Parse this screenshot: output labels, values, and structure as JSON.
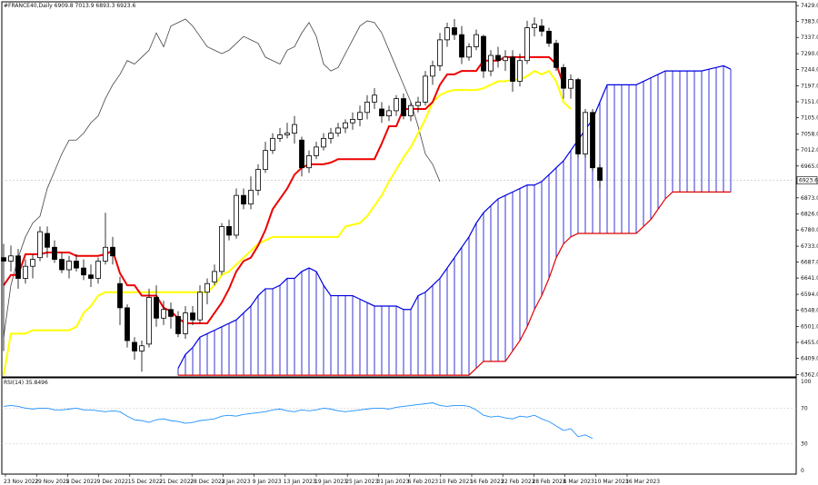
{
  "chart_data": {
    "type": "candlestick",
    "title": "#FRANCE40,Daily",
    "ohlc_header": "6909.8 7013.9 6893.3 6923.6",
    "last_price_label": "6923.6",
    "last_price": 6923.6,
    "price_axis_ticks": [
      "7429.0",
      "7383.0",
      "7337.0",
      "7290.0",
      "7244.0",
      "7197.0",
      "7151.0",
      "7105.0",
      "7058.0",
      "7012.0",
      "6965.0",
      "6919.0",
      "6873.0",
      "6826.0",
      "6780.0",
      "6733.0",
      "6687.0",
      "6641.0",
      "6594.0",
      "6548.0",
      "6501.0",
      "6455.0",
      "6409.0",
      "6362.0"
    ],
    "ylim": [
      6355,
      7440
    ],
    "x_date_labels": [
      "23 Nov 2022",
      "29 Nov 2022",
      "5 Dec 2022",
      "9 Dec 2022",
      "15 Dec 2022",
      "21 Dec 2022",
      "28 Dec 2022",
      "3 Jan 2023",
      "9 Jan 2023",
      "13 Jan 2023",
      "19 Jan 2023",
      "25 Jan 2023",
      "31 Jan 2023",
      "6 Feb 2023",
      "10 Feb 2023",
      "16 Feb 2023",
      "22 Feb 2023",
      "28 Feb 2023",
      "6 Mar 2023",
      "10 Mar 2023",
      "16 Mar 2023"
    ],
    "candles": [
      {
        "o": 6700,
        "h": 6740,
        "l": 6430,
        "c": 6690
      },
      {
        "o": 6690,
        "h": 6735,
        "l": 6660,
        "c": 6705
      },
      {
        "o": 6705,
        "h": 6725,
        "l": 6610,
        "c": 6640
      },
      {
        "o": 6640,
        "h": 6695,
        "l": 6625,
        "c": 6675
      },
      {
        "o": 6675,
        "h": 6710,
        "l": 6640,
        "c": 6695
      },
      {
        "o": 6700,
        "h": 6790,
        "l": 6690,
        "c": 6775
      },
      {
        "o": 6770,
        "h": 6790,
        "l": 6700,
        "c": 6730
      },
      {
        "o": 6730,
        "h": 6750,
        "l": 6685,
        "c": 6695
      },
      {
        "o": 6695,
        "h": 6715,
        "l": 6655,
        "c": 6665
      },
      {
        "o": 6665,
        "h": 6705,
        "l": 6640,
        "c": 6690
      },
      {
        "o": 6690,
        "h": 6710,
        "l": 6660,
        "c": 6670
      },
      {
        "o": 6670,
        "h": 6695,
        "l": 6635,
        "c": 6650
      },
      {
        "o": 6650,
        "h": 6680,
        "l": 6615,
        "c": 6640
      },
      {
        "o": 6640,
        "h": 6700,
        "l": 6625,
        "c": 6690
      },
      {
        "o": 6690,
        "h": 6830,
        "l": 6680,
        "c": 6730
      },
      {
        "o": 6730,
        "h": 6760,
        "l": 6680,
        "c": 6705
      },
      {
        "o": 6625,
        "h": 6645,
        "l": 6505,
        "c": 6555
      },
      {
        "o": 6555,
        "h": 6565,
        "l": 6440,
        "c": 6460
      },
      {
        "o": 6455,
        "h": 6470,
        "l": 6405,
        "c": 6430
      },
      {
        "o": 6430,
        "h": 6460,
        "l": 6370,
        "c": 6445
      },
      {
        "o": 6450,
        "h": 6610,
        "l": 6440,
        "c": 6585
      },
      {
        "o": 6585,
        "h": 6620,
        "l": 6500,
        "c": 6525
      },
      {
        "o": 6525,
        "h": 6575,
        "l": 6505,
        "c": 6550
      },
      {
        "o": 6550,
        "h": 6570,
        "l": 6495,
        "c": 6530
      },
      {
        "o": 6530,
        "h": 6545,
        "l": 6470,
        "c": 6480
      },
      {
        "o": 6480,
        "h": 6560,
        "l": 6465,
        "c": 6540
      },
      {
        "o": 6540,
        "h": 6560,
        "l": 6505,
        "c": 6520
      },
      {
        "o": 6520,
        "h": 6620,
        "l": 6510,
        "c": 6600
      },
      {
        "o": 6600,
        "h": 6640,
        "l": 6565,
        "c": 6625
      },
      {
        "o": 6630,
        "h": 6680,
        "l": 6620,
        "c": 6660
      },
      {
        "o": 6660,
        "h": 6800,
        "l": 6650,
        "c": 6790
      },
      {
        "o": 6790,
        "h": 6810,
        "l": 6750,
        "c": 6765
      },
      {
        "o": 6765,
        "h": 6900,
        "l": 6755,
        "c": 6880
      },
      {
        "o": 6880,
        "h": 6900,
        "l": 6840,
        "c": 6855
      },
      {
        "o": 6855,
        "h": 6935,
        "l": 6840,
        "c": 6895
      },
      {
        "o": 6895,
        "h": 6970,
        "l": 6880,
        "c": 6955
      },
      {
        "o": 6955,
        "h": 7035,
        "l": 6945,
        "c": 7010
      },
      {
        "o": 7010,
        "h": 7060,
        "l": 7000,
        "c": 7045
      },
      {
        "o": 7045,
        "h": 7075,
        "l": 7035,
        "c": 7055
      },
      {
        "o": 7055,
        "h": 7090,
        "l": 7045,
        "c": 7060
      },
      {
        "o": 7060,
        "h": 7110,
        "l": 7030,
        "c": 7085
      },
      {
        "o": 7040,
        "h": 7050,
        "l": 6935,
        "c": 6960
      },
      {
        "o": 6960,
        "h": 7010,
        "l": 6945,
        "c": 6995
      },
      {
        "o": 6995,
        "h": 7035,
        "l": 6985,
        "c": 7020
      },
      {
        "o": 7020,
        "h": 7060,
        "l": 7010,
        "c": 7045
      },
      {
        "o": 7045,
        "h": 7075,
        "l": 7030,
        "c": 7060
      },
      {
        "o": 7060,
        "h": 7090,
        "l": 7050,
        "c": 7075
      },
      {
        "o": 7075,
        "h": 7100,
        "l": 7060,
        "c": 7090
      },
      {
        "o": 7090,
        "h": 7120,
        "l": 7070,
        "c": 7100
      },
      {
        "o": 7100,
        "h": 7140,
        "l": 7080,
        "c": 7120
      },
      {
        "o": 7120,
        "h": 7170,
        "l": 7100,
        "c": 7150
      },
      {
        "o": 7150,
        "h": 7190,
        "l": 7130,
        "c": 7170
      },
      {
        "o": 7130,
        "h": 7150,
        "l": 7090,
        "c": 7110
      },
      {
        "o": 7110,
        "h": 7140,
        "l": 7095,
        "c": 7125
      },
      {
        "o": 7125,
        "h": 7170,
        "l": 7110,
        "c": 7160
      },
      {
        "o": 7160,
        "h": 7175,
        "l": 7100,
        "c": 7110
      },
      {
        "o": 7110,
        "h": 7150,
        "l": 7095,
        "c": 7140
      },
      {
        "o": 7140,
        "h": 7165,
        "l": 7120,
        "c": 7150
      },
      {
        "o": 7150,
        "h": 7240,
        "l": 7140,
        "c": 7225
      },
      {
        "o": 7225,
        "h": 7270,
        "l": 7200,
        "c": 7255
      },
      {
        "o": 7255,
        "h": 7350,
        "l": 7240,
        "c": 7330
      },
      {
        "o": 7330,
        "h": 7380,
        "l": 7310,
        "c": 7365
      },
      {
        "o": 7365,
        "h": 7390,
        "l": 7330,
        "c": 7345
      },
      {
        "o": 7345,
        "h": 7370,
        "l": 7260,
        "c": 7280
      },
      {
        "o": 7280,
        "h": 7320,
        "l": 7270,
        "c": 7310
      },
      {
        "o": 7310,
        "h": 7360,
        "l": 7300,
        "c": 7345
      },
      {
        "o": 7340,
        "h": 7345,
        "l": 7220,
        "c": 7240
      },
      {
        "o": 7240,
        "h": 7300,
        "l": 7225,
        "c": 7285
      },
      {
        "o": 7285,
        "h": 7310,
        "l": 7250,
        "c": 7270
      },
      {
        "o": 7270,
        "h": 7300,
        "l": 7240,
        "c": 7280
      },
      {
        "o": 7280,
        "h": 7300,
        "l": 7180,
        "c": 7210
      },
      {
        "o": 7210,
        "h": 7290,
        "l": 7195,
        "c": 7270
      },
      {
        "o": 7270,
        "h": 7385,
        "l": 7260,
        "c": 7365
      },
      {
        "o": 7365,
        "h": 7395,
        "l": 7340,
        "c": 7375
      },
      {
        "o": 7370,
        "h": 7390,
        "l": 7340,
        "c": 7355
      },
      {
        "o": 7355,
        "h": 7365,
        "l": 7310,
        "c": 7320
      },
      {
        "o": 7320,
        "h": 7330,
        "l": 7240,
        "c": 7250
      },
      {
        "o": 7250,
        "h": 7260,
        "l": 7160,
        "c": 7190
      },
      {
        "o": 7190,
        "h": 7230,
        "l": 7160,
        "c": 7215
      },
      {
        "o": 7215,
        "h": 7220,
        "l": 6990,
        "c": 7000
      },
      {
        "o": 7000,
        "h": 7130,
        "l": 6990,
        "c": 7120
      },
      {
        "o": 7120,
        "h": 7130,
        "l": 6950,
        "c": 6960
      },
      {
        "o": 6960,
        "h": 6970,
        "l": 6900,
        "c": 6923.6
      }
    ],
    "tenkan": [
      6620,
      6650,
      6650,
      6710,
      6710,
      6710,
      6715,
      6715,
      6715,
      6715,
      6705,
      6705,
      6705,
      6705,
      6710,
      6720,
      6655,
      6620,
      6620,
      6590,
      6590,
      6590,
      6555,
      6545,
      6525,
      6510,
      6510,
      6510,
      6510,
      6540,
      6570,
      6610,
      6660,
      6690,
      6700,
      6735,
      6780,
      6840,
      6870,
      6900,
      6940,
      6960,
      6970,
      6970,
      6970,
      6975,
      6985,
      6985,
      6985,
      6985,
      6985,
      6985,
      7030,
      7080,
      7080,
      7130,
      7130,
      7130,
      7130,
      7150,
      7200,
      7230,
      7230,
      7240,
      7240,
      7240,
      7270,
      7270,
      7270,
      7280,
      7280,
      7280,
      7280,
      7280,
      7280,
      7280,
      7260,
      7200
    ],
    "kijun": [
      6360,
      6480,
      6480,
      6480,
      6490,
      6490,
      6490,
      6490,
      6490,
      6490,
      6500,
      6540,
      6560,
      6590,
      6600,
      6600,
      6600,
      6600,
      6600,
      6600,
      6600,
      6600,
      6600,
      6600,
      6600,
      6600,
      6600,
      6600,
      6600,
      6620,
      6650,
      6660,
      6680,
      6700,
      6720,
      6740,
      6750,
      6760,
      6760,
      6760,
      6760,
      6760,
      6760,
      6760,
      6760,
      6760,
      6760,
      6790,
      6795,
      6800,
      6820,
      6850,
      6880,
      6920,
      6955,
      6990,
      7020,
      7060,
      7100,
      7150,
      7170,
      7180,
      7185,
      7185,
      7185,
      7185,
      7190,
      7200,
      7210,
      7210,
      7215,
      7215,
      7225,
      7240,
      7230,
      7240,
      7210,
      7150,
      7130
    ],
    "senkou_a": [
      6380,
      6420,
      6440,
      6470,
      6480,
      6490,
      6500,
      6510,
      6520,
      6540,
      6560,
      6590,
      6610,
      6610,
      6620,
      6640,
      6640,
      6660,
      6670,
      6660,
      6620,
      6590,
      6590,
      6590,
      6590,
      6580,
      6570,
      6560,
      6560,
      6560,
      6560,
      6550,
      6550,
      6590,
      6600,
      6620,
      6640,
      6670,
      6700,
      6730,
      6760,
      6800,
      6830,
      6850,
      6870,
      6880,
      6890,
      6900,
      6910,
      6910,
      6920,
      6940,
      6960,
      6980,
      7010,
      7040,
      7070,
      7100,
      7150,
      7200,
      7200,
      7200,
      7200,
      7200,
      7210,
      7220,
      7230,
      7240,
      7240,
      7240,
      7240,
      7240,
      7240,
      7245,
      7250,
      7255,
      7245
    ],
    "senkou_b": [
      6360,
      6360,
      6360,
      6360,
      6360,
      6360,
      6360,
      6360,
      6360,
      6360,
      6360,
      6360,
      6360,
      6360,
      6360,
      6360,
      6360,
      6360,
      6360,
      6360,
      6360,
      6360,
      6360,
      6360,
      6360,
      6360,
      6360,
      6360,
      6360,
      6360,
      6360,
      6360,
      6360,
      6360,
      6360,
      6360,
      6360,
      6360,
      6360,
      6360,
      6360,
      6380,
      6400,
      6400,
      6400,
      6400,
      6430,
      6460,
      6500,
      6550,
      6590,
      6640,
      6700,
      6740,
      6760,
      6770,
      6770,
      6770,
      6770,
      6770,
      6770,
      6770,
      6770,
      6770,
      6790,
      6810,
      6840,
      6870,
      6890,
      6890,
      6890,
      6890,
      6890,
      6890,
      6890,
      6890,
      6890,
      6890
    ],
    "chikou": [
      6470,
      6620,
      6700,
      6760,
      6800,
      6820,
      6900,
      6950,
      7000,
      7040,
      7040,
      7060,
      7090,
      7110,
      7160,
      7200,
      7230,
      7270,
      7260,
      7280,
      7300,
      7350,
      7310,
      7370,
      7380,
      7390,
      7370,
      7340,
      7310,
      7300,
      7290,
      7300,
      7320,
      7340,
      7330,
      7320,
      7280,
      7270,
      7260,
      7300,
      7310,
      7350,
      7380,
      7340,
      7260,
      7240,
      7250,
      7290,
      7330,
      7370,
      7385,
      7380,
      7350,
      7300,
      7250,
      7200,
      7150,
      7080,
      7000,
      6970,
      6920
    ],
    "rsi": {
      "label": "RSI(14) 35.8496",
      "value": 35.8496,
      "levels": [
        30,
        70
      ],
      "axis_ticks": [
        "100",
        "70",
        "30",
        "0"
      ],
      "values": [
        72,
        73,
        72,
        70,
        69,
        70,
        70,
        68,
        68,
        69,
        70,
        68,
        68,
        67,
        66,
        67,
        66,
        61,
        57,
        56,
        54,
        57,
        58,
        56,
        55,
        53,
        54,
        56,
        57,
        58,
        61,
        62,
        61,
        63,
        64,
        65,
        66,
        68,
        69,
        67,
        66,
        68,
        67,
        68,
        70,
        69,
        67,
        66,
        67,
        68,
        69,
        70,
        70,
        69,
        71,
        72,
        73,
        74,
        75,
        76,
        73,
        72,
        73,
        73,
        72,
        68,
        62,
        60,
        61,
        59,
        58,
        61,
        60,
        62,
        58,
        55,
        50,
        45,
        47,
        38,
        40,
        36
      ]
    }
  }
}
